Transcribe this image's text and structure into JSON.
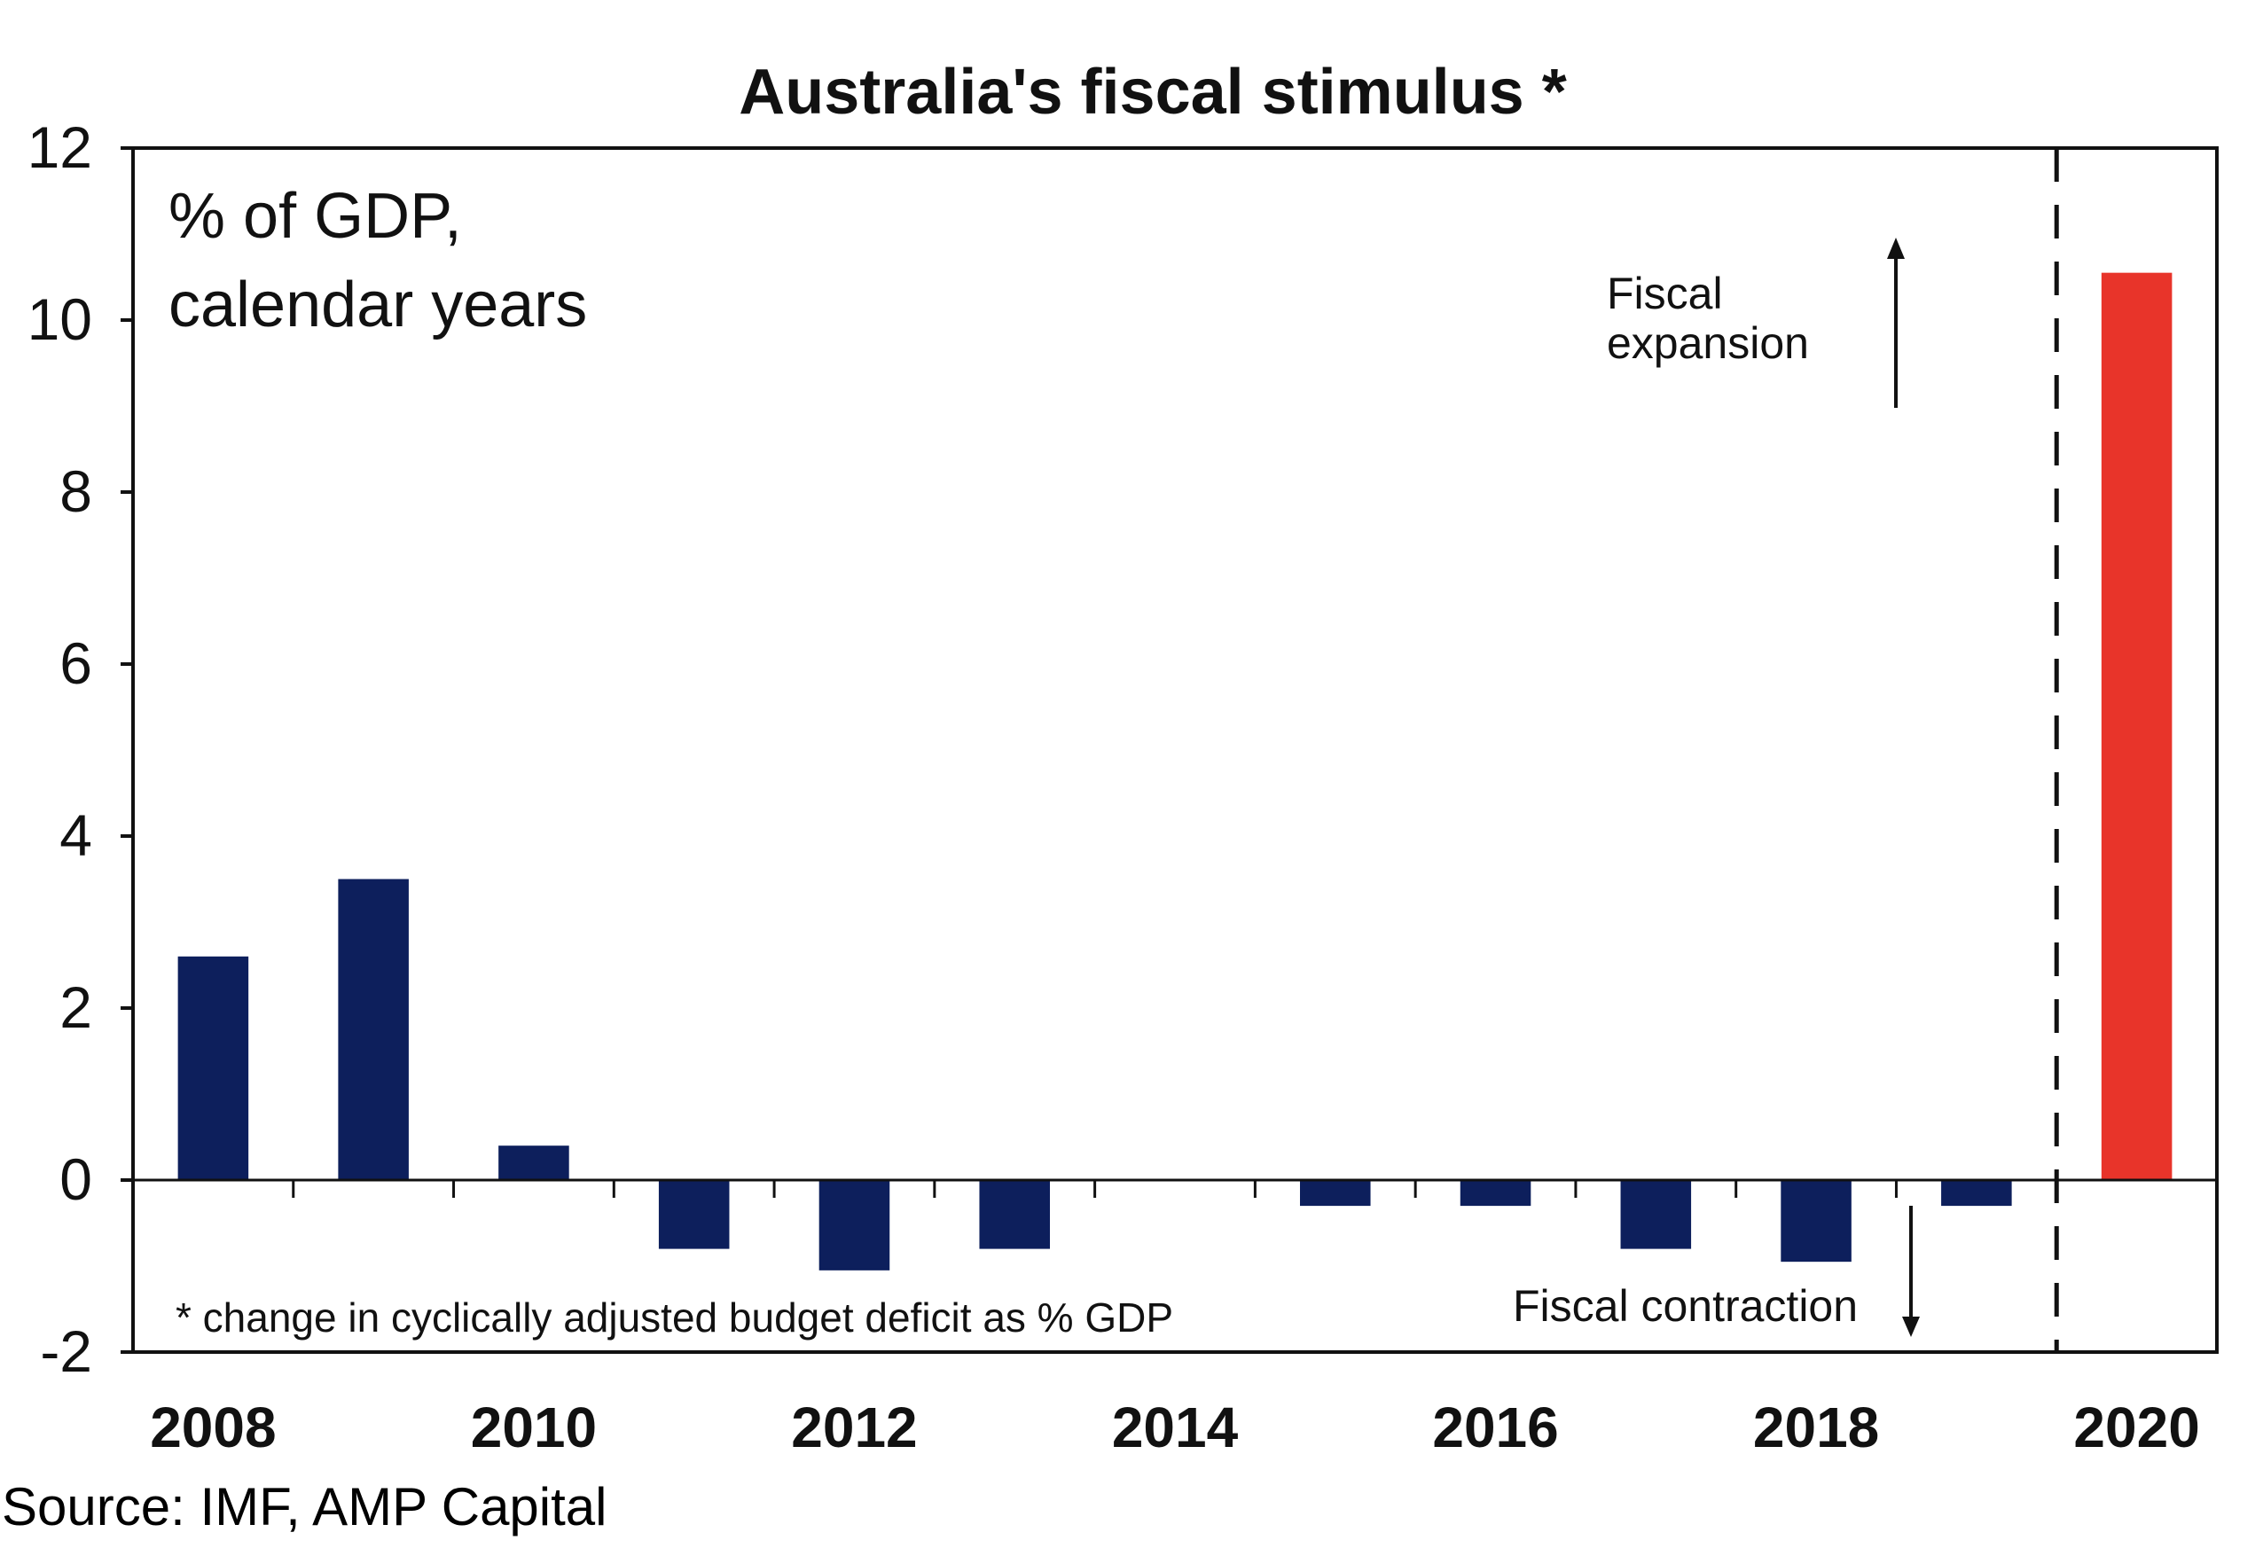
{
  "chart_data": {
    "type": "bar",
    "title": "Australia's fiscal stimulus *",
    "unit_label_line1": "% of GDP,",
    "unit_label_line2": "calendar years",
    "x": [
      2008,
      2009,
      2010,
      2011,
      2012,
      2013,
      2014,
      2015,
      2016,
      2017,
      2018,
      2019,
      2020
    ],
    "values": [
      2.6,
      3.5,
      0.4,
      -0.8,
      -1.05,
      -0.8,
      0,
      -0.3,
      -0.3,
      -0.8,
      -0.95,
      -0.3,
      10.55
    ],
    "x_tick_labels": [
      "2008",
      "2010",
      "2012",
      "2014",
      "2016",
      "2018",
      "2020"
    ],
    "y_tick_labels": [
      "-2",
      "0",
      "2",
      "4",
      "6",
      "8",
      "10",
      "12"
    ],
    "ylim": [
      -2,
      12
    ],
    "grid": false,
    "bar_color": "#0d1f5c",
    "highlight_color": "#e8342a",
    "highlight_year": 2020,
    "divider_between": [
      2019,
      2020
    ],
    "annotations": {
      "expansion_line1": "Fiscal",
      "expansion_line2": "expansion",
      "contraction": "Fiscal contraction",
      "footnote": "* change in cyclically adjusted budget deficit as % GDP"
    }
  },
  "source": "Source: IMF, AMP Capital"
}
